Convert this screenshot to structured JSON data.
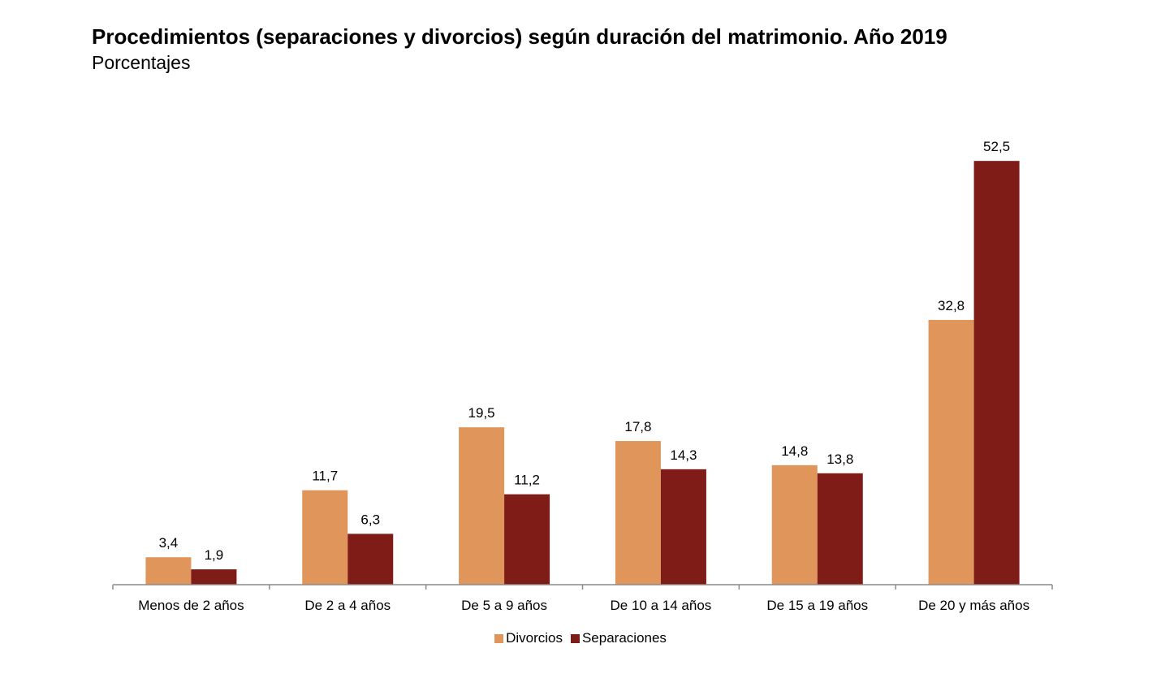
{
  "chart_data": {
    "type": "bar",
    "title": "Procedimientos (separaciones y divorcios) según duración del matrimonio. Año 2019",
    "subtitle": "Porcentajes",
    "categories": [
      "Menos de 2 años",
      "De 2 a 4 años",
      "De 5 a 9 años",
      "De 10 a 14 años",
      "De 15 a 19 años",
      "De 20 y más años"
    ],
    "series": [
      {
        "name": "Divorcios",
        "color": "#E0955A",
        "values": [
          3.4,
          11.7,
          19.5,
          17.8,
          14.8,
          32.8
        ],
        "labels": [
          "3,4",
          "11,7",
          "19,5",
          "17,8",
          "14,8",
          "32,8"
        ]
      },
      {
        "name": "Separaciones",
        "color": "#7F1C17",
        "values": [
          1.9,
          6.3,
          11.2,
          14.3,
          13.8,
          52.5
        ],
        "labels": [
          "1,9",
          "6,3",
          "11,2",
          "14,3",
          "13,8",
          "52,5"
        ]
      }
    ],
    "ylim": [
      0,
      55
    ],
    "grid": false,
    "legend": "bottom"
  }
}
